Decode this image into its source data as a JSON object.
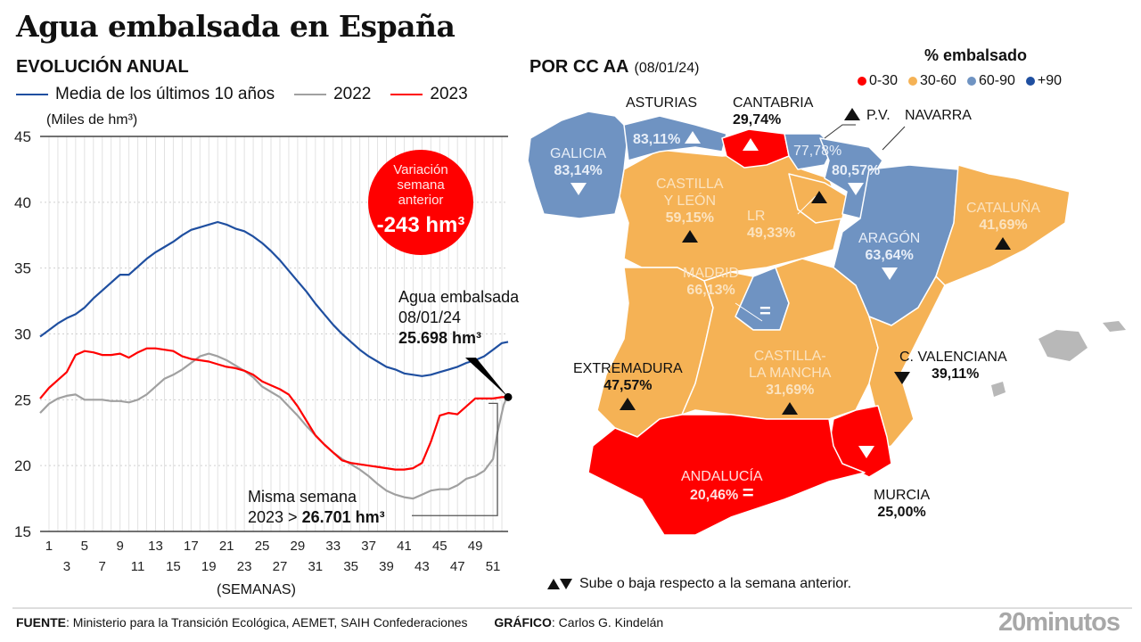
{
  "title": "Agua embalsada en España",
  "left_panel": {
    "subtitle": "EVOLUCIÓN ANUAL",
    "unit_label": "(Miles de hm³)",
    "xlabel": "(SEMANAS)",
    "bubble": {
      "line1": "Variación",
      "line2": "semana",
      "line3": "anterior",
      "value": "-243 hm³"
    },
    "annotation_now": {
      "line1": "Agua embalsada",
      "line2": "08/01/24",
      "value": "25.698 hm³"
    },
    "annotation_prev": {
      "line1": "Misma semana",
      "line2_prefix": "2023 > ",
      "value": "26.701 hm³"
    }
  },
  "chart_data": {
    "type": "line",
    "title": "EVOLUCIÓN ANUAL",
    "xlabel": "(SEMANAS)",
    "ylabel": "(Miles de hm³)",
    "ylim": [
      15,
      45
    ],
    "yticks": [
      15,
      20,
      25,
      30,
      35,
      40,
      45
    ],
    "xticks_top": [
      "1",
      "5",
      "9",
      "13",
      "17",
      "21",
      "25",
      "29",
      "33",
      "37",
      "41",
      "45",
      "49"
    ],
    "xticks_bottom": [
      "3",
      "7",
      "11",
      "15",
      "19",
      "23",
      "27",
      "31",
      "35",
      "39",
      "43",
      "47",
      "51"
    ],
    "xlim": [
      0,
      52.7
    ],
    "grid": "vertical every week, dotted horizontal every 5",
    "legend": "top",
    "colors": {
      "media": "#1f4fa0",
      "y2022": "#a0a0a0",
      "y2023": "#ff0000"
    },
    "series": [
      {
        "name": "Media de los últimos 10 años",
        "key": "media",
        "x": [
          0,
          1,
          2,
          3,
          4,
          5,
          6,
          7,
          8,
          9,
          10,
          11,
          12,
          13,
          14,
          15,
          16,
          17,
          18,
          19,
          20,
          21,
          22,
          23,
          24,
          25,
          26,
          27,
          28,
          29,
          30,
          31,
          32,
          33,
          34,
          35,
          36,
          37,
          38,
          39,
          40,
          41,
          42,
          43,
          44,
          45,
          46,
          47,
          48,
          49,
          50,
          51,
          52,
          52.7
        ],
        "values": [
          29.8,
          30.3,
          30.8,
          31.2,
          31.5,
          32.0,
          32.7,
          33.3,
          33.9,
          34.5,
          34.5,
          35.1,
          35.7,
          36.2,
          36.6,
          37.0,
          37.5,
          37.9,
          38.1,
          38.3,
          38.5,
          38.3,
          38.0,
          37.8,
          37.4,
          36.9,
          36.3,
          35.6,
          34.8,
          34.0,
          33.2,
          32.3,
          31.5,
          30.7,
          30.0,
          29.4,
          28.8,
          28.3,
          27.9,
          27.5,
          27.3,
          27.0,
          26.9,
          26.8,
          26.9,
          27.1,
          27.3,
          27.5,
          27.8,
          28.0,
          28.3,
          28.8,
          29.3,
          29.4
        ]
      },
      {
        "name": "2022",
        "key": "y2022",
        "x": [
          0,
          1,
          2,
          3,
          4,
          5,
          6,
          7,
          8,
          9,
          10,
          11,
          12,
          13,
          14,
          15,
          16,
          17,
          18,
          19,
          20,
          21,
          22,
          23,
          24,
          25,
          26,
          27,
          28,
          29,
          30,
          31,
          32,
          33,
          34,
          35,
          36,
          37,
          38,
          39,
          40,
          41,
          42,
          43,
          44,
          45,
          46,
          47,
          48,
          49,
          50,
          51,
          51.5,
          52.2,
          52.7
        ],
        "values": [
          24.0,
          24.7,
          25.1,
          25.3,
          25.4,
          25.0,
          25.0,
          25.0,
          24.9,
          24.9,
          24.8,
          25.0,
          25.4,
          26.0,
          26.6,
          26.9,
          27.3,
          27.8,
          28.3,
          28.5,
          28.3,
          28.0,
          27.6,
          27.2,
          26.7,
          26.0,
          25.6,
          25.2,
          24.5,
          23.8,
          23.0,
          22.3,
          21.6,
          21.0,
          20.5,
          20.1,
          19.7,
          19.2,
          18.6,
          18.1,
          17.8,
          17.6,
          17.5,
          17.8,
          18.1,
          18.2,
          18.2,
          18.5,
          19.0,
          19.2,
          19.6,
          20.5,
          22.5,
          24.6,
          25.4
        ]
      },
      {
        "name": "2023",
        "key": "y2023",
        "x": [
          0,
          1,
          2,
          3,
          4,
          5,
          6,
          7,
          8,
          9,
          10,
          11,
          12,
          13,
          14,
          15,
          16,
          17,
          18,
          19,
          20,
          21,
          22,
          23,
          24,
          25,
          26,
          27,
          28,
          29,
          30,
          31,
          32,
          33,
          34,
          35,
          36,
          37,
          38,
          39,
          40,
          41,
          42,
          43,
          44,
          45,
          46,
          47,
          48,
          49,
          50,
          51,
          52,
          52.7
        ],
        "values": [
          25.1,
          25.9,
          26.5,
          27.1,
          28.4,
          28.7,
          28.6,
          28.4,
          28.4,
          28.5,
          28.2,
          28.6,
          28.9,
          28.9,
          28.8,
          28.7,
          28.3,
          28.1,
          28.0,
          27.9,
          27.7,
          27.5,
          27.4,
          27.2,
          26.9,
          26.4,
          26.1,
          25.8,
          25.4,
          24.5,
          23.4,
          22.3,
          21.6,
          21.0,
          20.4,
          20.2,
          20.1,
          20.0,
          19.9,
          19.8,
          19.7,
          19.7,
          19.8,
          20.2,
          21.8,
          23.8,
          24.0,
          23.9,
          24.5,
          25.1,
          25.1,
          25.1,
          25.2,
          25.2
        ]
      }
    ]
  },
  "right_panel": {
    "subtitle": "POR CC AA",
    "date": "(08/01/24)",
    "legend_title": "% embalsado",
    "legend": [
      {
        "label": "0-30",
        "color": "#ff0000"
      },
      {
        "label": "30-60",
        "color": "#f5b255"
      },
      {
        "label": "60-90",
        "color": "#6f93c2"
      },
      {
        "label": "+90",
        "color": "#1f4fa0"
      }
    ],
    "regions": [
      {
        "name": "GALICIA",
        "pct": "83,14%",
        "trend": "down",
        "category": "60-90"
      },
      {
        "name": "ASTURIAS",
        "pct": "83,11%",
        "trend": "up",
        "category": "60-90"
      },
      {
        "name": "CANTABRIA",
        "pct": "29,74%",
        "trend": "up",
        "category": "0-30"
      },
      {
        "name": "P.V.",
        "pct": "77,78%",
        "trend": "up",
        "category": "60-90"
      },
      {
        "name": "NAVARRA",
        "pct": "80,57%",
        "trend": "down",
        "category": "60-90"
      },
      {
        "name": "CASTILLA Y LEÓN",
        "name1": "CASTILLA",
        "name2": "Y LEÓN",
        "pct": "59,15%",
        "trend": "up",
        "category": "30-60"
      },
      {
        "name": "LR",
        "pct": "49,33%",
        "trend": "up",
        "category": "30-60"
      },
      {
        "name": "ARAGÓN",
        "pct": "63,64%",
        "trend": "down",
        "category": "60-90"
      },
      {
        "name": "CATALUÑA",
        "pct": "41,69%",
        "trend": "up",
        "category": "30-60"
      },
      {
        "name": "MADRID",
        "pct": "66,13%",
        "trend": "equal",
        "category": "60-90"
      },
      {
        "name": "EXTREMADURA",
        "pct": "47,57%",
        "trend": "up",
        "category": "30-60"
      },
      {
        "name": "CASTILLA-LA MANCHA",
        "name1": "CASTILLA-",
        "name2": "LA MANCHA",
        "pct": "31,69%",
        "trend": "up",
        "category": "30-60"
      },
      {
        "name": "C. VALENCIANA",
        "pct": "39,11%",
        "trend": "down",
        "category": "30-60"
      },
      {
        "name": "ANDALUCÍA",
        "pct": "20,46%",
        "trend": "equal",
        "category": "0-30"
      },
      {
        "name": "MURCIA",
        "pct": "25,00%",
        "trend": "down",
        "category": "0-30"
      }
    ],
    "trend_note": "Sube o baja respecto a la semana anterior."
  },
  "footer": {
    "source_label": "FUENTE",
    "source_text": ": Ministerio para la Transición Ecológica, AEMET, SAIH Confederaciones",
    "graphic_label": "GRÁFICO",
    "graphic_text": ": Carlos G. Kindelán",
    "brand": "20minutos"
  }
}
